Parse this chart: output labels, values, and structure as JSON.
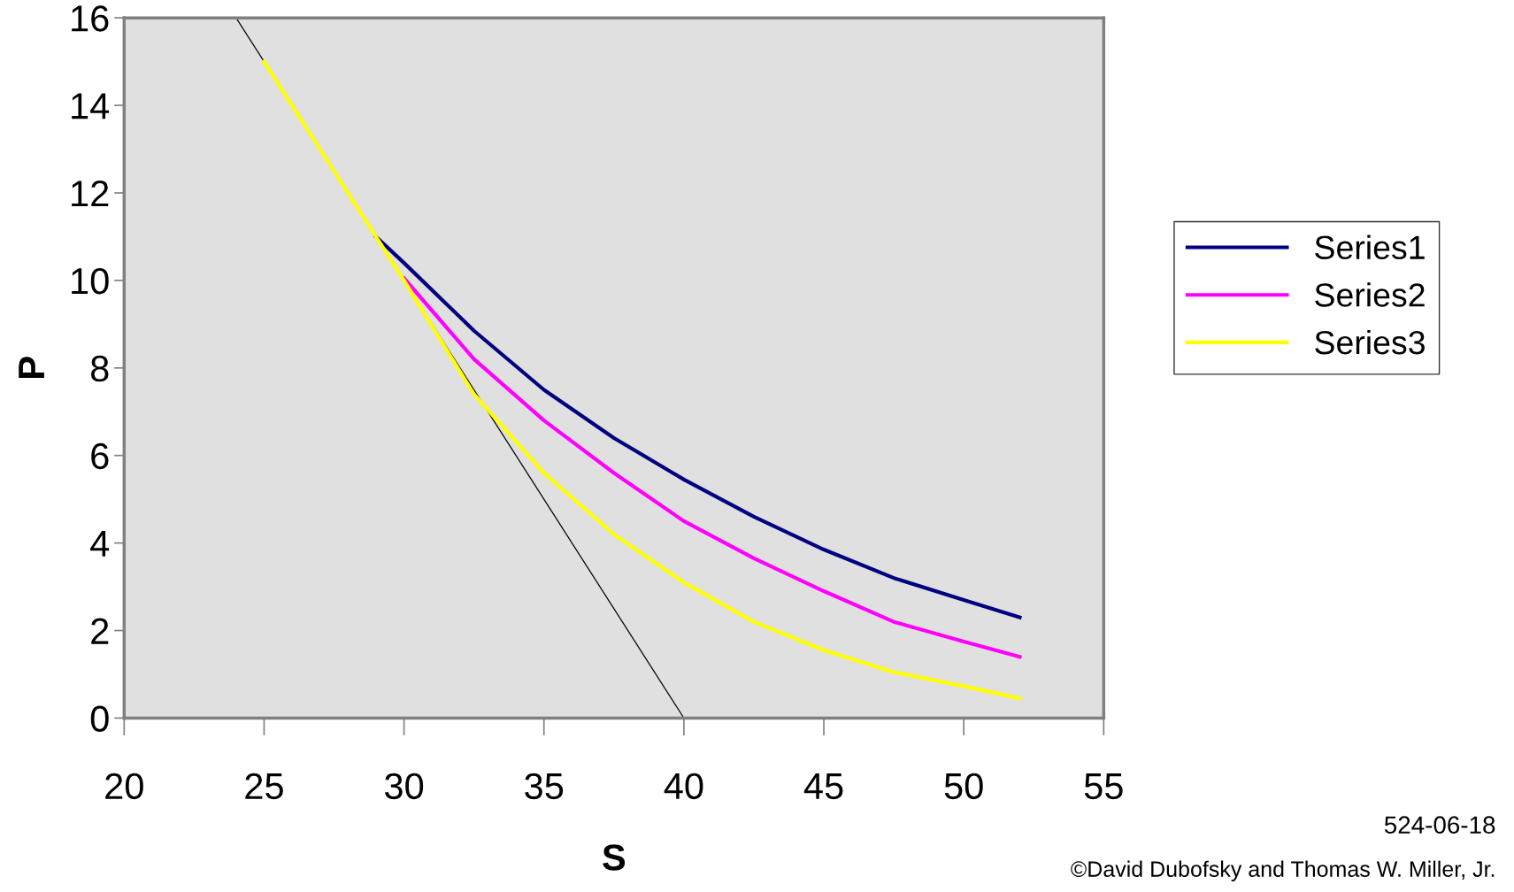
{
  "chart_data": {
    "type": "line",
    "xlabel": "S",
    "ylabel": "P",
    "xlim": [
      20,
      55
    ],
    "ylim": [
      0,
      16
    ],
    "xticks": [
      20,
      25,
      30,
      35,
      40,
      45,
      50,
      55
    ],
    "yticks": [
      0,
      2,
      4,
      6,
      8,
      10,
      12,
      14,
      16
    ],
    "grid": false,
    "legend": "right",
    "marker": "none",
    "line_style": "solid",
    "series": [
      {
        "color": "#000000",
        "x": [
          24,
          40
        ],
        "values": [
          16,
          0
        ]
      },
      {
        "name": "Series1",
        "color": "#000080",
        "x": [
          29,
          30,
          32.5,
          35,
          37.5,
          40,
          42.5,
          45,
          47.5,
          50,
          52
        ],
        "values": [
          11,
          10.4,
          8.85,
          7.5,
          6.4,
          5.45,
          4.6,
          3.85,
          3.2,
          2.7,
          2.3
        ]
      },
      {
        "name": "Series2",
        "color": "#ff00ff",
        "x": [
          30,
          32.5,
          35,
          37.5,
          40,
          42.5,
          45,
          47.5,
          50,
          52
        ],
        "values": [
          10.05,
          8.2,
          6.8,
          5.6,
          4.5,
          3.65,
          2.9,
          2.2,
          1.75,
          1.4
        ]
      },
      {
        "name": "Series3",
        "color": "#ffff00",
        "x": [
          25,
          27.5,
          30,
          32.5,
          35,
          37.5,
          40,
          42.5,
          45,
          47.5,
          50,
          52
        ],
        "values": [
          15,
          12.5,
          10,
          7.4,
          5.6,
          4.2,
          3.1,
          2.2,
          1.55,
          1.05,
          0.73,
          0.45
        ]
      }
    ],
    "annotations": [
      "©David Dubofsky and Thomas W. Miller, Jr.",
      "524-06-18"
    ]
  }
}
